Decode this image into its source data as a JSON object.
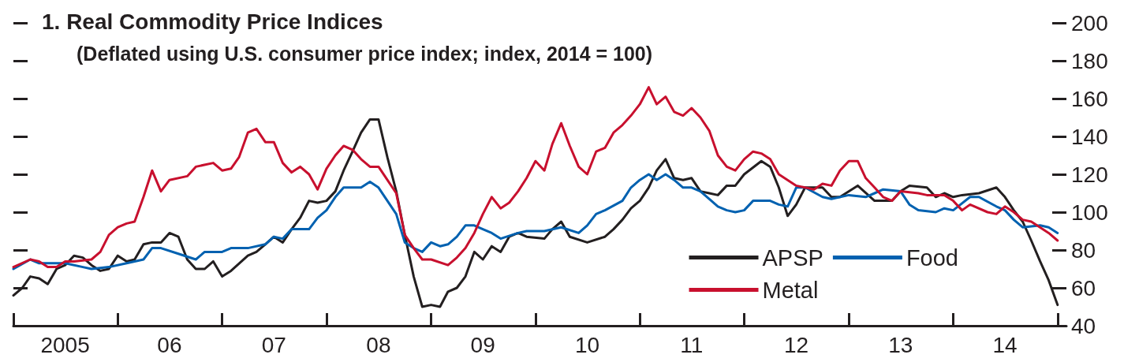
{
  "chart_data": {
    "type": "line",
    "title": "1. Real Commodity Price Indices",
    "subtitle": "(Deflated using U.S. consumer price index; index, 2014 = 100)",
    "xlim": [
      "2005-01",
      "2015-02"
    ],
    "xticks": [
      {
        "value": "2005-01",
        "label": null
      },
      {
        "value": "2005-07",
        "label": "2005"
      },
      {
        "value": "2006-01",
        "label": null
      },
      {
        "value": "2006-07",
        "label": "06"
      },
      {
        "value": "2007-01",
        "label": null
      },
      {
        "value": "2007-07",
        "label": "07"
      },
      {
        "value": "2008-01",
        "label": null
      },
      {
        "value": "2008-07",
        "label": "08"
      },
      {
        "value": "2009-01",
        "label": null
      },
      {
        "value": "2009-07",
        "label": "09"
      },
      {
        "value": "2010-01",
        "label": null
      },
      {
        "value": "2010-07",
        "label": "10"
      },
      {
        "value": "2011-01",
        "label": null
      },
      {
        "value": "2011-07",
        "label": "11"
      },
      {
        "value": "2012-01",
        "label": null
      },
      {
        "value": "2012-07",
        "label": "12"
      },
      {
        "value": "2013-01",
        "label": null
      },
      {
        "value": "2013-07",
        "label": "13"
      },
      {
        "value": "2014-01",
        "label": null
      },
      {
        "value": "2014-07",
        "label": "14"
      },
      {
        "value": "2015-01",
        "label": null
      }
    ],
    "ylim": [
      40,
      200
    ],
    "yticks": [
      40,
      60,
      80,
      100,
      120,
      140,
      160,
      180,
      200
    ],
    "grid": false,
    "legend": "bottom right",
    "marker": "none",
    "line_style": "solid",
    "series": [
      {
        "name": "APSP",
        "color": "#231f20",
        "x": [
          "2005-01",
          "2005-02",
          "2005-03",
          "2005-04",
          "2005-05",
          "2005-06",
          "2005-07",
          "2005-08",
          "2005-09",
          "2005-10",
          "2005-11",
          "2005-12",
          "2006-01",
          "2006-02",
          "2006-03",
          "2006-04",
          "2006-05",
          "2006-06",
          "2006-07",
          "2006-08",
          "2006-09",
          "2006-10",
          "2006-11",
          "2006-12",
          "2007-01",
          "2007-02",
          "2007-04",
          "2007-05",
          "2007-06",
          "2007-07",
          "2007-08",
          "2007-09",
          "2007-10",
          "2007-11",
          "2007-12",
          "2008-01",
          "2008-02",
          "2008-03",
          "2008-04",
          "2008-05",
          "2008-06",
          "2008-07",
          "2008-08",
          "2008-09",
          "2008-10",
          "2008-11",
          "2008-12",
          "2009-01",
          "2009-02",
          "2009-03",
          "2009-04",
          "2009-05",
          "2009-06",
          "2009-07",
          "2009-08",
          "2009-09",
          "2009-10",
          "2009-11",
          "2009-12",
          "2010-02",
          "2010-03",
          "2010-04",
          "2010-05",
          "2010-07",
          "2010-09",
          "2010-10",
          "2010-11",
          "2010-12",
          "2011-01",
          "2011-02",
          "2011-03",
          "2011-04",
          "2011-05",
          "2011-06",
          "2011-07",
          "2011-08",
          "2011-09",
          "2011-10",
          "2011-11",
          "2011-12",
          "2012-01",
          "2012-03",
          "2012-04",
          "2012-05",
          "2012-06",
          "2012-07",
          "2012-08",
          "2012-10",
          "2012-11",
          "2012-12",
          "2013-02",
          "2013-04",
          "2013-06",
          "2013-07",
          "2013-08",
          "2013-10",
          "2013-11",
          "2013-12",
          "2014-01",
          "2014-02",
          "2014-04",
          "2014-06",
          "2014-07",
          "2014-08",
          "2014-09",
          "2014-10",
          "2014-11",
          "2014-12",
          "2015-01"
        ],
        "values": [
          56,
          60,
          66,
          65,
          62,
          70,
          72,
          77,
          76,
          72,
          69,
          70,
          77,
          74,
          75,
          83,
          84,
          84,
          89,
          87,
          75,
          70,
          70,
          74,
          66,
          69,
          77,
          79,
          83,
          87,
          84,
          91,
          97,
          106,
          105,
          106,
          111,
          122,
          132,
          142,
          149,
          149,
          129,
          111,
          88,
          66,
          50,
          51,
          50,
          58,
          60,
          66,
          79,
          75,
          82,
          79,
          87,
          89,
          87,
          86,
          91,
          95,
          87,
          84,
          87,
          91,
          96,
          102,
          106,
          113,
          122,
          128,
          118,
          117,
          118,
          111,
          110,
          109,
          114,
          114,
          120,
          127,
          124,
          113,
          98,
          104,
          113,
          113,
          108,
          108,
          114,
          106,
          106,
          111,
          114,
          113,
          108,
          110,
          108,
          109,
          110,
          113,
          108,
          101,
          95,
          85,
          74,
          64,
          51
        ]
      },
      {
        "name": "Food",
        "color": "#0061b0",
        "x": [
          "2005-01",
          "2005-03",
          "2005-04",
          "2005-07",
          "2005-09",
          "2005-10",
          "2005-12",
          "2006-02",
          "2006-04",
          "2006-05",
          "2006-06",
          "2006-08",
          "2006-10",
          "2006-11",
          "2007-01",
          "2007-02",
          "2007-04",
          "2007-06",
          "2007-07",
          "2007-08",
          "2007-09",
          "2007-11",
          "2007-12",
          "2008-01",
          "2008-02",
          "2008-03",
          "2008-05",
          "2008-06",
          "2008-07",
          "2008-08",
          "2008-09",
          "2008-10",
          "2008-11",
          "2008-12",
          "2009-01",
          "2009-02",
          "2009-03",
          "2009-04",
          "2009-05",
          "2009-06",
          "2009-07",
          "2009-08",
          "2009-09",
          "2009-11",
          "2009-12",
          "2010-02",
          "2010-04",
          "2010-06",
          "2010-07",
          "2010-08",
          "2010-09",
          "2010-11",
          "2010-12",
          "2011-01",
          "2011-02",
          "2011-03",
          "2011-04",
          "2011-05",
          "2011-06",
          "2011-07",
          "2011-08",
          "2011-10",
          "2011-11",
          "2011-12",
          "2012-01",
          "2012-02",
          "2012-04",
          "2012-05",
          "2012-06",
          "2012-07",
          "2012-08",
          "2012-10",
          "2012-11",
          "2013-01",
          "2013-03",
          "2013-04",
          "2013-05",
          "2013-07",
          "2013-08",
          "2013-09",
          "2013-11",
          "2013-12",
          "2014-01",
          "2014-03",
          "2014-04",
          "2014-06",
          "2014-07",
          "2014-08",
          "2014-09",
          "2014-11",
          "2014-12",
          "2015-01"
        ],
        "values": [
          70,
          75,
          73,
          73,
          71,
          70,
          71,
          73,
          75,
          81,
          81,
          78,
          75,
          79,
          79,
          81,
          81,
          83,
          87,
          86,
          91,
          91,
          97,
          101,
          108,
          113,
          113,
          116,
          113,
          106,
          99,
          84,
          81,
          79,
          84,
          82,
          83,
          87,
          93,
          93,
          91,
          89,
          86,
          89,
          90,
          90,
          92,
          89,
          93,
          99,
          101,
          106,
          113,
          117,
          120,
          117,
          120,
          117,
          113,
          113,
          111,
          103,
          101,
          100,
          101,
          106,
          106,
          104,
          103,
          113,
          113,
          108,
          107,
          109,
          108,
          110,
          112,
          111,
          104,
          101,
          100,
          102,
          101,
          108,
          108,
          103,
          101,
          96,
          92,
          93,
          92,
          89
        ]
      },
      {
        "name": "Metal",
        "color": "#c8102e",
        "x": [
          "2005-01",
          "2005-03",
          "2005-04",
          "2005-05",
          "2005-06",
          "2005-07",
          "2005-08",
          "2005-10",
          "2005-11",
          "2005-12",
          "2006-01",
          "2006-02",
          "2006-03",
          "2006-04",
          "2006-05",
          "2006-06",
          "2006-07",
          "2006-09",
          "2006-10",
          "2006-12",
          "2007-01",
          "2007-02",
          "2007-03",
          "2007-04",
          "2007-05",
          "2007-06",
          "2007-07",
          "2007-08",
          "2007-09",
          "2007-10",
          "2007-11",
          "2007-12",
          "2008-01",
          "2008-02",
          "2008-03",
          "2008-04",
          "2008-05",
          "2008-06",
          "2008-07",
          "2008-08",
          "2008-09",
          "2008-10",
          "2008-11",
          "2008-12",
          "2009-01",
          "2009-03",
          "2009-04",
          "2009-05",
          "2009-06",
          "2009-07",
          "2009-08",
          "2009-09",
          "2009-10",
          "2009-11",
          "2009-12",
          "2010-01",
          "2010-02",
          "2010-03",
          "2010-04",
          "2010-05",
          "2010-06",
          "2010-07",
          "2010-08",
          "2010-09",
          "2010-10",
          "2010-11",
          "2010-12",
          "2011-01",
          "2011-02",
          "2011-03",
          "2011-04",
          "2011-05",
          "2011-06",
          "2011-07",
          "2011-08",
          "2011-09",
          "2011-10",
          "2011-11",
          "2011-12",
          "2012-01",
          "2012-02",
          "2012-03",
          "2012-04",
          "2012-05",
          "2012-07",
          "2012-09",
          "2012-10",
          "2012-11",
          "2012-12",
          "2013-01",
          "2013-02",
          "2013-03",
          "2013-04",
          "2013-05",
          "2013-06",
          "2013-07",
          "2013-09",
          "2013-10",
          "2013-12",
          "2014-01",
          "2014-02",
          "2014-03",
          "2014-05",
          "2014-06",
          "2014-07",
          "2014-08",
          "2014-09",
          "2014-10",
          "2014-12",
          "2015-01"
        ],
        "values": [
          71,
          75,
          74,
          71,
          71,
          74,
          74,
          75,
          79,
          88,
          92,
          94,
          95,
          108,
          122,
          111,
          117,
          119,
          124,
          126,
          122,
          123,
          129,
          142,
          144,
          137,
          137,
          126,
          121,
          124,
          120,
          112,
          123,
          130,
          135,
          133,
          128,
          124,
          124,
          117,
          110,
          88,
          81,
          75,
          75,
          72,
          76,
          81,
          89,
          99,
          108,
          102,
          105,
          111,
          118,
          127,
          122,
          136,
          147,
          135,
          124,
          120,
          132,
          134,
          142,
          146,
          151,
          157,
          166,
          157,
          161,
          153,
          151,
          155,
          150,
          143,
          130,
          124,
          122,
          128,
          132,
          131,
          128,
          120,
          114,
          112,
          115,
          114,
          122,
          127,
          127,
          118,
          113,
          108,
          106,
          111,
          110,
          109,
          109,
          106,
          101,
          104,
          100,
          99,
          103,
          100,
          96,
          95,
          89,
          85
        ]
      }
    ]
  }
}
